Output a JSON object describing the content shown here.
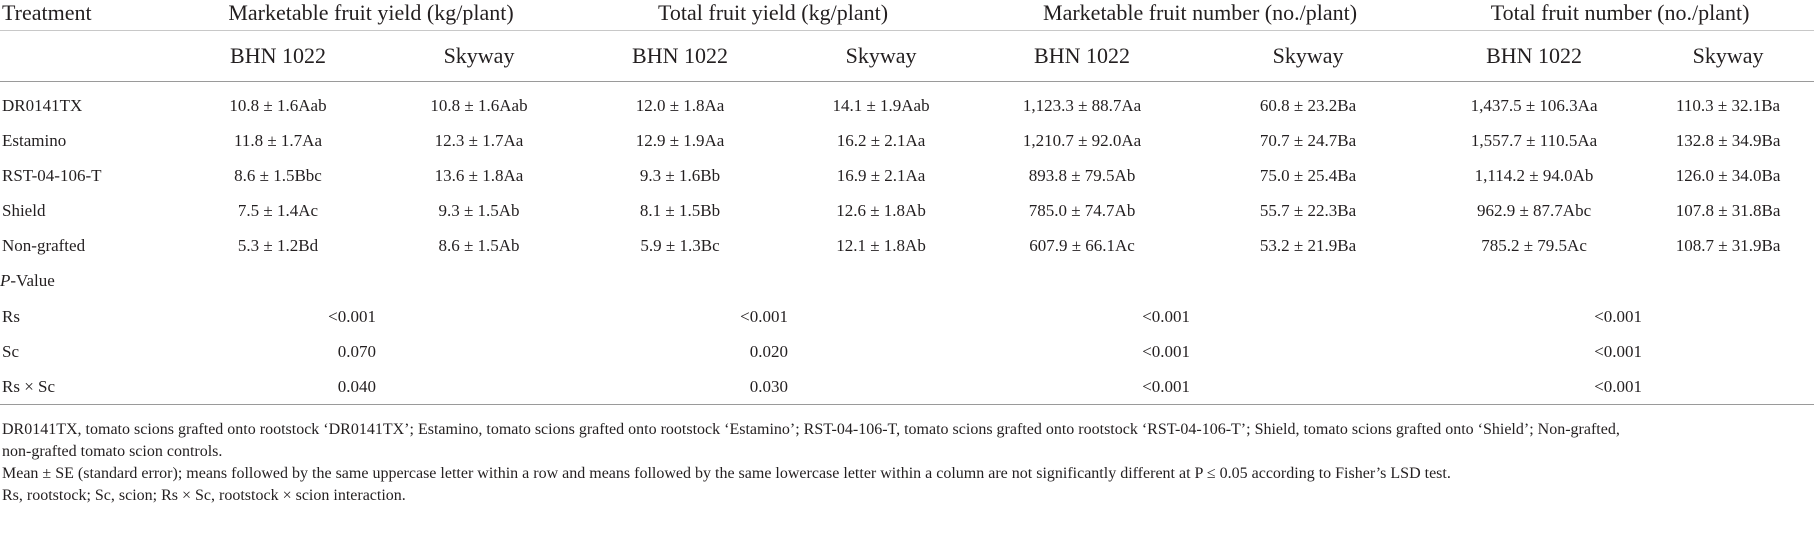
{
  "headers": {
    "treatment": "Treatment",
    "groups": [
      "Marketable fruit yield (kg/plant)",
      "Total fruit yield (kg/plant)",
      "Marketable fruit number (no./plant)",
      "Total fruit number (no./plant)"
    ],
    "subs": [
      "BHN 1022",
      "Skyway",
      "BHN 1022",
      "Skyway",
      "BHN 1022",
      "Skyway",
      "BHN 1022",
      "Skyway"
    ]
  },
  "rows": [
    {
      "name": "DR0141TX",
      "values": [
        "10.8 ± 1.6Aab",
        "10.8 ± 1.6Aab",
        "12.0 ± 1.8Aa",
        "14.1 ± 1.9Aab",
        "1,123.3 ± 88.7Aa",
        "60.8 ± 23.2Ba",
        "1,437.5 ± 106.3Aa",
        "110.3 ± 32.1Ba"
      ]
    },
    {
      "name": "Estamino",
      "values": [
        "11.8 ± 1.7Aa",
        "12.3 ± 1.7Aa",
        "12.9 ± 1.9Aa",
        "16.2 ± 2.1Aa",
        "1,210.7 ± 92.0Aa",
        "70.7 ± 24.7Ba",
        "1,557.7 ± 110.5Aa",
        "132.8 ± 34.9Ba"
      ]
    },
    {
      "name": "RST-04-106-T",
      "values": [
        "8.6 ± 1.5Bbc",
        "13.6 ± 1.8Aa",
        "9.3 ± 1.6Bb",
        "16.9 ± 2.1Aa",
        "893.8 ± 79.5Ab",
        "75.0 ± 25.4Ba",
        "1,114.2 ± 94.0Ab",
        "126.0 ± 34.0Ba"
      ]
    },
    {
      "name": "Shield",
      "values": [
        "7.5 ± 1.4Ac",
        "9.3 ± 1.5Ab",
        "8.1 ± 1.5Bb",
        "12.6 ± 1.8Ab",
        "785.0 ± 74.7Ab",
        "55.7 ± 22.3Ba",
        "962.9 ± 87.7Abc",
        "107.8 ± 31.8Ba"
      ]
    },
    {
      "name": "Non-grafted",
      "values": [
        "5.3 ± 1.2Bd",
        "8.6 ± 1.5Ab",
        "5.9 ± 1.3Bc",
        "12.1 ± 1.8Ab",
        "607.9 ± 66.1Ac",
        "53.2 ± 21.9Ba",
        "785.2 ± 79.5Ac",
        "108.7 ± 31.9Ba"
      ]
    }
  ],
  "pvalue": {
    "label_p": "P",
    "label_rest": "-Value",
    "rows": [
      {
        "name": "Rs",
        "values": [
          "<0.001",
          "<0.001",
          "<0.001",
          "<0.001"
        ]
      },
      {
        "name": "Sc",
        "values": [
          "0.070",
          "0.020",
          "<0.001",
          "<0.001"
        ]
      },
      {
        "name": "Rs × Sc",
        "values": [
          "0.040",
          "0.030",
          "<0.001",
          "<0.001"
        ]
      }
    ]
  },
  "notes": [
    "DR0141TX, tomato scions grafted onto rootstock ‘DR0141TX’; Estamino, tomato scions grafted onto rootstock ‘Estamino’; RST-04-106-T, tomato scions grafted onto rootstock ‘RST-04-106-T’; Shield, tomato scions grafted onto ‘Shield’; Non-grafted,",
    "non-grafted tomato scion controls.",
    "Mean ± SE (standard error); means followed by the same uppercase letter within a row and means followed by the same lowercase letter within a column are not significantly different at P ≤ 0.05 according to Fisher’s LSD test.",
    "Rs, rootstock; Sc, scion; Rs × Sc, rootstock × scion interaction."
  ]
}
